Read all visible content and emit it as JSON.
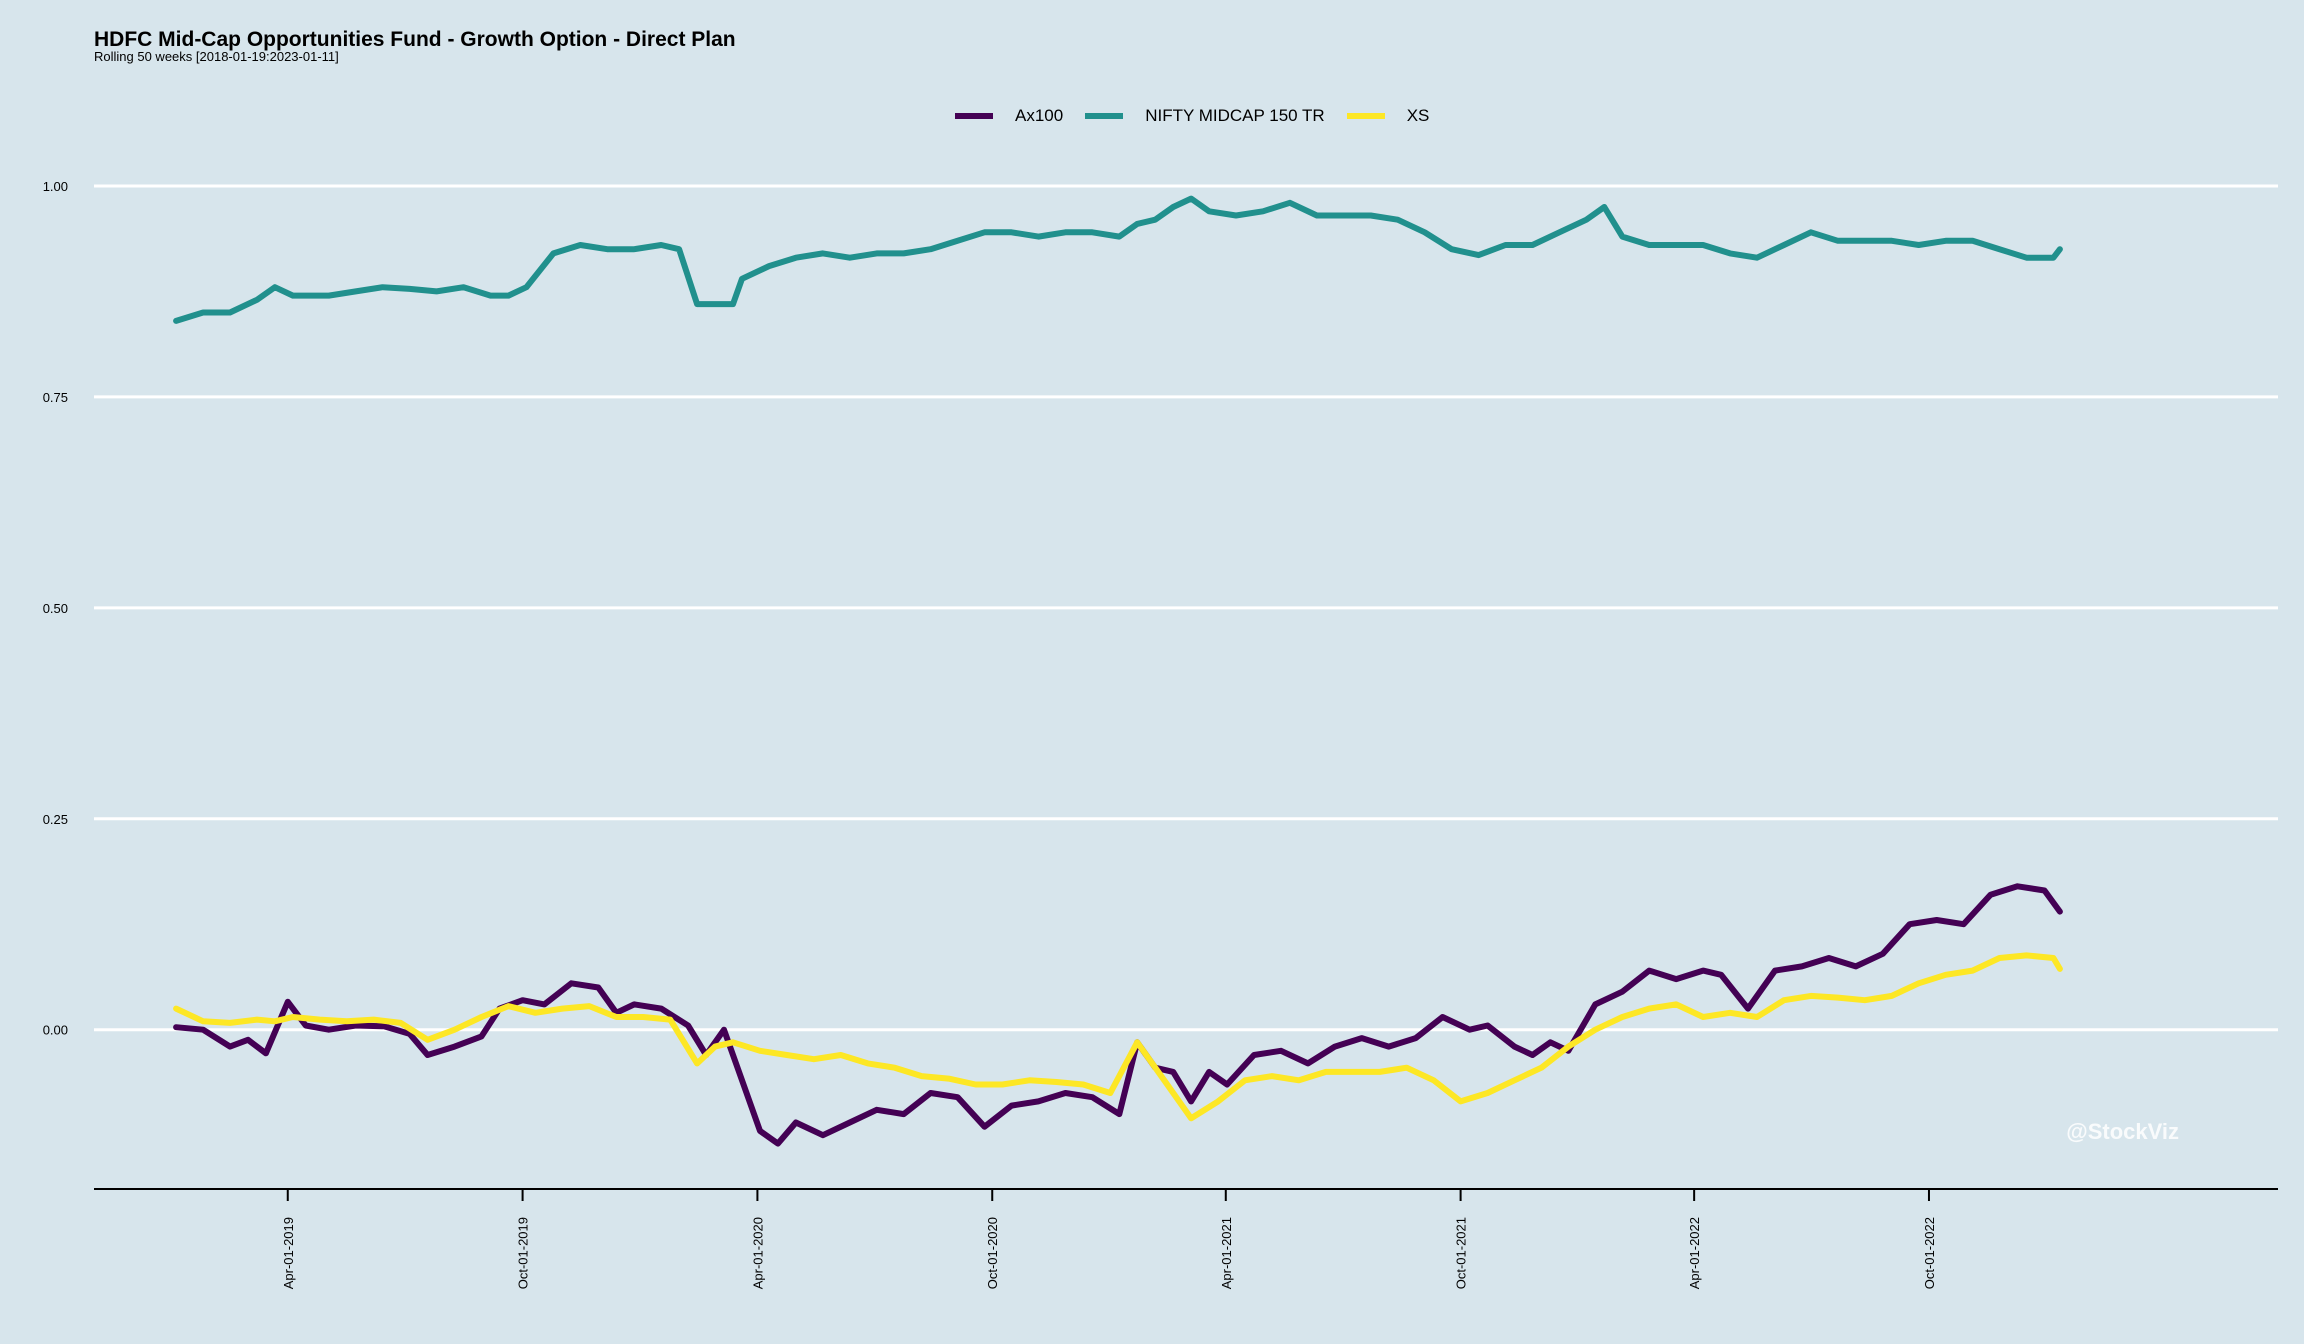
{
  "chart_data": {
    "type": "line",
    "title": "HDFC Mid-Cap Opportunities Fund - Growth Option - Direct Plan",
    "subtitle": "Rolling 50 weeks [2018-01-19:2023-01-11]",
    "xlabel": "",
    "ylabel": "",
    "ylim": [
      -0.19,
      1.09
    ],
    "yticks": [
      0.0,
      0.25,
      0.5,
      0.75,
      1.0
    ],
    "ytick_labels": [
      "0.00",
      "0.25",
      "0.50",
      "0.75",
      "1.00"
    ],
    "xlim": [
      "2018-11-01",
      "2023-06-30"
    ],
    "xticks": [
      "2019-04-01",
      "2019-10-01",
      "2020-04-01",
      "2020-10-01",
      "2021-04-01",
      "2021-10-01",
      "2022-04-01",
      "2022-10-01"
    ],
    "xtick_labels": [
      "Apr-01-2019",
      "Oct-01-2019",
      "Apr-01-2020",
      "Oct-01-2020",
      "Apr-01-2021",
      "Oct-01-2021",
      "Apr-01-2022",
      "Oct-01-2022"
    ],
    "grid": "horizontal",
    "legend_position": "top",
    "series": [
      {
        "name": "Ax100",
        "color": "#440154",
        "points": [
          [
            "2019-01-04",
            0.003
          ],
          [
            "2019-01-25",
            0.0
          ],
          [
            "2019-02-15",
            -0.02
          ],
          [
            "2019-03-01",
            -0.012
          ],
          [
            "2019-03-15",
            -0.028
          ],
          [
            "2019-04-01",
            0.033
          ],
          [
            "2019-04-15",
            0.005
          ],
          [
            "2019-05-03",
            0.0
          ],
          [
            "2019-05-24",
            0.005
          ],
          [
            "2019-06-15",
            0.004
          ],
          [
            "2019-07-05",
            -0.005
          ],
          [
            "2019-07-19",
            -0.03
          ],
          [
            "2019-08-09",
            -0.02
          ],
          [
            "2019-08-30",
            -0.008
          ],
          [
            "2019-09-13",
            0.025
          ],
          [
            "2019-10-01",
            0.035
          ],
          [
            "2019-10-18",
            0.03
          ],
          [
            "2019-11-08",
            0.055
          ],
          [
            "2019-11-29",
            0.05
          ],
          [
            "2019-12-13",
            0.02
          ],
          [
            "2019-12-27",
            0.03
          ],
          [
            "2020-01-17",
            0.025
          ],
          [
            "2020-02-07",
            0.005
          ],
          [
            "2020-02-21",
            -0.03
          ],
          [
            "2020-03-06",
            0.0
          ],
          [
            "2020-03-20",
            -0.06
          ],
          [
            "2020-04-03",
            -0.12
          ],
          [
            "2020-04-17",
            -0.135
          ],
          [
            "2020-05-01",
            -0.11
          ],
          [
            "2020-05-22",
            -0.125
          ],
          [
            "2020-06-12",
            -0.11
          ],
          [
            "2020-07-03",
            -0.095
          ],
          [
            "2020-07-24",
            -0.1
          ],
          [
            "2020-08-14",
            -0.075
          ],
          [
            "2020-09-04",
            -0.08
          ],
          [
            "2020-09-25",
            -0.115
          ],
          [
            "2020-10-16",
            -0.09
          ],
          [
            "2020-11-06",
            -0.085
          ],
          [
            "2020-11-27",
            -0.075
          ],
          [
            "2020-12-18",
            -0.08
          ],
          [
            "2021-01-08",
            -0.1
          ],
          [
            "2021-01-22",
            -0.015
          ],
          [
            "2021-02-05",
            -0.045
          ],
          [
            "2021-02-19",
            -0.05
          ],
          [
            "2021-03-05",
            -0.085
          ],
          [
            "2021-03-19",
            -0.05
          ],
          [
            "2021-04-02",
            -0.065
          ],
          [
            "2021-04-23",
            -0.03
          ],
          [
            "2021-05-14",
            -0.025
          ],
          [
            "2021-06-04",
            -0.04
          ],
          [
            "2021-06-25",
            -0.02
          ],
          [
            "2021-07-16",
            -0.01
          ],
          [
            "2021-08-06",
            -0.02
          ],
          [
            "2021-08-27",
            -0.01
          ],
          [
            "2021-09-17",
            0.015
          ],
          [
            "2021-10-08",
            0.0
          ],
          [
            "2021-10-22",
            0.005
          ],
          [
            "2021-11-12",
            -0.02
          ],
          [
            "2021-11-26",
            -0.03
          ],
          [
            "2021-12-10",
            -0.015
          ],
          [
            "2021-12-24",
            -0.025
          ],
          [
            "2022-01-14",
            0.03
          ],
          [
            "2022-02-04",
            0.045
          ],
          [
            "2022-02-25",
            0.07
          ],
          [
            "2022-03-18",
            0.06
          ],
          [
            "2022-04-08",
            0.07
          ],
          [
            "2022-04-22",
            0.065
          ],
          [
            "2022-05-13",
            0.025
          ],
          [
            "2022-06-03",
            0.07
          ],
          [
            "2022-06-24",
            0.075
          ],
          [
            "2022-07-15",
            0.085
          ],
          [
            "2022-08-05",
            0.075
          ],
          [
            "2022-08-26",
            0.09
          ],
          [
            "2022-09-16",
            0.125
          ],
          [
            "2022-10-07",
            0.13
          ],
          [
            "2022-10-28",
            0.125
          ],
          [
            "2022-11-18",
            0.16
          ],
          [
            "2022-12-09",
            0.17
          ],
          [
            "2022-12-30",
            0.165
          ],
          [
            "2023-01-11",
            0.14
          ]
        ]
      },
      {
        "name": "NIFTY MIDCAP 150 TR",
        "color": "#21908d",
        "points": [
          [
            "2019-01-04",
            0.84
          ],
          [
            "2019-01-25",
            0.85
          ],
          [
            "2019-02-15",
            0.85
          ],
          [
            "2019-03-08",
            0.865
          ],
          [
            "2019-03-22",
            0.88
          ],
          [
            "2019-04-05",
            0.87
          ],
          [
            "2019-05-03",
            0.87
          ],
          [
            "2019-05-24",
            0.875
          ],
          [
            "2019-06-14",
            0.88
          ],
          [
            "2019-07-05",
            0.878
          ],
          [
            "2019-07-26",
            0.875
          ],
          [
            "2019-08-16",
            0.88
          ],
          [
            "2019-09-06",
            0.87
          ],
          [
            "2019-09-20",
            0.87
          ],
          [
            "2019-10-04",
            0.88
          ],
          [
            "2019-10-25",
            0.92
          ],
          [
            "2019-11-15",
            0.93
          ],
          [
            "2019-12-06",
            0.925
          ],
          [
            "2019-12-27",
            0.925
          ],
          [
            "2020-01-17",
            0.93
          ],
          [
            "2020-01-31",
            0.925
          ],
          [
            "2020-02-14",
            0.86
          ],
          [
            "2020-02-28",
            0.86
          ],
          [
            "2020-03-13",
            0.86
          ],
          [
            "2020-03-20",
            0.89
          ],
          [
            "2020-04-10",
            0.905
          ],
          [
            "2020-05-01",
            0.915
          ],
          [
            "2020-05-22",
            0.92
          ],
          [
            "2020-06-12",
            0.915
          ],
          [
            "2020-07-03",
            0.92
          ],
          [
            "2020-07-24",
            0.92
          ],
          [
            "2020-08-14",
            0.925
          ],
          [
            "2020-09-04",
            0.935
          ],
          [
            "2020-09-25",
            0.945
          ],
          [
            "2020-10-16",
            0.945
          ],
          [
            "2020-11-06",
            0.94
          ],
          [
            "2020-11-27",
            0.945
          ],
          [
            "2020-12-18",
            0.945
          ],
          [
            "2021-01-08",
            0.94
          ],
          [
            "2021-01-22",
            0.955
          ],
          [
            "2021-02-05",
            0.96
          ],
          [
            "2021-02-19",
            0.975
          ],
          [
            "2021-03-05",
            0.985
          ],
          [
            "2021-03-19",
            0.97
          ],
          [
            "2021-04-09",
            0.965
          ],
          [
            "2021-04-30",
            0.97
          ],
          [
            "2021-05-21",
            0.98
          ],
          [
            "2021-06-11",
            0.965
          ],
          [
            "2021-07-02",
            0.965
          ],
          [
            "2021-07-23",
            0.965
          ],
          [
            "2021-08-13",
            0.96
          ],
          [
            "2021-09-03",
            0.945
          ],
          [
            "2021-09-24",
            0.925
          ],
          [
            "2021-10-15",
            0.918
          ],
          [
            "2021-11-05",
            0.93
          ],
          [
            "2021-11-26",
            0.93
          ],
          [
            "2021-12-17",
            0.945
          ],
          [
            "2022-01-07",
            0.96
          ],
          [
            "2022-01-21",
            0.975
          ],
          [
            "2022-02-04",
            0.94
          ],
          [
            "2022-02-25",
            0.93
          ],
          [
            "2022-03-18",
            0.93
          ],
          [
            "2022-04-08",
            0.93
          ],
          [
            "2022-04-29",
            0.92
          ],
          [
            "2022-05-20",
            0.915
          ],
          [
            "2022-06-10",
            0.93
          ],
          [
            "2022-07-01",
            0.945
          ],
          [
            "2022-07-22",
            0.935
          ],
          [
            "2022-08-12",
            0.935
          ],
          [
            "2022-09-02",
            0.935
          ],
          [
            "2022-09-23",
            0.93
          ],
          [
            "2022-10-14",
            0.935
          ],
          [
            "2022-11-04",
            0.935
          ],
          [
            "2022-11-25",
            0.925
          ],
          [
            "2022-12-16",
            0.915
          ],
          [
            "2023-01-06",
            0.915
          ],
          [
            "2023-01-11",
            0.925
          ]
        ]
      },
      {
        "name": "XS",
        "color": "#fde725",
        "points": [
          [
            "2019-01-04",
            0.025
          ],
          [
            "2019-01-25",
            0.01
          ],
          [
            "2019-02-15",
            0.008
          ],
          [
            "2019-03-08",
            0.012
          ],
          [
            "2019-03-22",
            0.01
          ],
          [
            "2019-04-05",
            0.015
          ],
          [
            "2019-04-26",
            0.012
          ],
          [
            "2019-05-17",
            0.01
          ],
          [
            "2019-06-07",
            0.012
          ],
          [
            "2019-06-28",
            0.008
          ],
          [
            "2019-07-19",
            -0.012
          ],
          [
            "2019-08-09",
            0.0
          ],
          [
            "2019-08-30",
            0.015
          ],
          [
            "2019-09-20",
            0.028
          ],
          [
            "2019-10-11",
            0.02
          ],
          [
            "2019-11-01",
            0.025
          ],
          [
            "2019-11-22",
            0.028
          ],
          [
            "2019-12-13",
            0.015
          ],
          [
            "2020-01-03",
            0.015
          ],
          [
            "2020-01-24",
            0.012
          ],
          [
            "2020-02-14",
            -0.04
          ],
          [
            "2020-02-28",
            -0.02
          ],
          [
            "2020-03-13",
            -0.015
          ],
          [
            "2020-04-03",
            -0.025
          ],
          [
            "2020-04-24",
            -0.03
          ],
          [
            "2020-05-15",
            -0.035
          ],
          [
            "2020-06-05",
            -0.03
          ],
          [
            "2020-06-26",
            -0.04
          ],
          [
            "2020-07-17",
            -0.045
          ],
          [
            "2020-08-07",
            -0.055
          ],
          [
            "2020-08-28",
            -0.058
          ],
          [
            "2020-09-18",
            -0.065
          ],
          [
            "2020-10-09",
            -0.065
          ],
          [
            "2020-10-30",
            -0.06
          ],
          [
            "2020-11-20",
            -0.062
          ],
          [
            "2020-12-11",
            -0.065
          ],
          [
            "2021-01-01",
            -0.075
          ],
          [
            "2021-01-22",
            -0.015
          ],
          [
            "2021-02-12",
            -0.06
          ],
          [
            "2021-03-05",
            -0.105
          ],
          [
            "2021-03-26",
            -0.085
          ],
          [
            "2021-04-16",
            -0.06
          ],
          [
            "2021-05-07",
            -0.055
          ],
          [
            "2021-05-28",
            -0.06
          ],
          [
            "2021-06-18",
            -0.05
          ],
          [
            "2021-07-09",
            -0.05
          ],
          [
            "2021-07-30",
            -0.05
          ],
          [
            "2021-08-20",
            -0.045
          ],
          [
            "2021-09-10",
            -0.06
          ],
          [
            "2021-10-01",
            -0.085
          ],
          [
            "2021-10-22",
            -0.075
          ],
          [
            "2021-11-12",
            -0.06
          ],
          [
            "2021-12-03",
            -0.045
          ],
          [
            "2021-12-24",
            -0.02
          ],
          [
            "2022-01-14",
            0.0
          ],
          [
            "2022-02-04",
            0.015
          ],
          [
            "2022-02-25",
            0.025
          ],
          [
            "2022-03-18",
            0.03
          ],
          [
            "2022-04-08",
            0.015
          ],
          [
            "2022-04-29",
            0.02
          ],
          [
            "2022-05-20",
            0.015
          ],
          [
            "2022-06-10",
            0.035
          ],
          [
            "2022-07-01",
            0.04
          ],
          [
            "2022-07-22",
            0.038
          ],
          [
            "2022-08-12",
            0.035
          ],
          [
            "2022-09-02",
            0.04
          ],
          [
            "2022-09-23",
            0.055
          ],
          [
            "2022-10-14",
            0.065
          ],
          [
            "2022-11-04",
            0.07
          ],
          [
            "2022-11-25",
            0.085
          ],
          [
            "2022-12-16",
            0.088
          ],
          [
            "2023-01-06",
            0.085
          ],
          [
            "2023-01-11",
            0.072
          ]
        ]
      }
    ]
  },
  "watermark": "@StockViz"
}
